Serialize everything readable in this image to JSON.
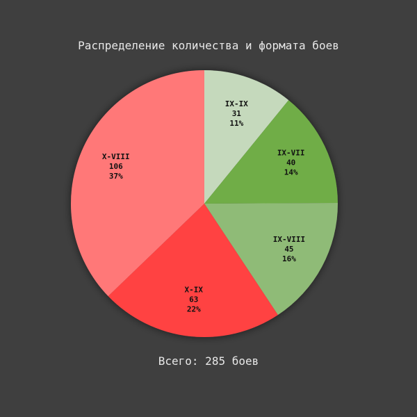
{
  "chart_data": {
    "type": "pie",
    "title": "Распределение количества и формата боев",
    "footer": "Всего: 285 боев",
    "start_angle": "top",
    "direction": "clockwise",
    "slices": [
      {
        "label": "IX-IX",
        "value": 31,
        "percent": "11%",
        "color": "#c5d9bc"
      },
      {
        "label": "IX-VII",
        "value": 40,
        "percent": "14%",
        "color": "#6fad47"
      },
      {
        "label": "IX-VIII",
        "value": 45,
        "percent": "16%",
        "color": "#8fbb77"
      },
      {
        "label": "X-IX",
        "value": 63,
        "percent": "22%",
        "color": "#ff4242"
      },
      {
        "label": "X-VIII",
        "value": 106,
        "percent": "37%",
        "color": "#ff7878"
      }
    ]
  }
}
